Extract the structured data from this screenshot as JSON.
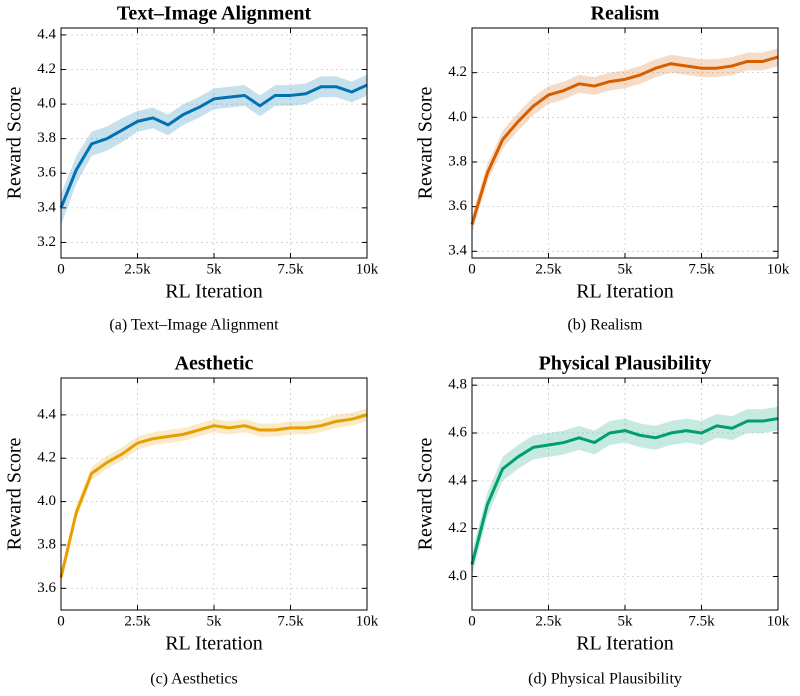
{
  "chart_data": [
    {
      "type": "line",
      "title": "Text–Image Alignment",
      "xlabel": "RL Iteration",
      "ylabel": "Reward Score",
      "caption": "(a) Text–Image Alignment",
      "x": [
        0,
        500,
        1000,
        1500,
        2000,
        2500,
        3000,
        3500,
        4000,
        4500,
        5000,
        5500,
        6000,
        6500,
        7000,
        7500,
        8000,
        8500,
        9000,
        9500,
        10000
      ],
      "series": [
        {
          "color": "#0072b2",
          "values": [
            3.4,
            3.62,
            3.77,
            3.8,
            3.85,
            3.9,
            3.92,
            3.88,
            3.94,
            3.98,
            4.03,
            4.04,
            4.05,
            3.99,
            4.05,
            4.05,
            4.06,
            4.1,
            4.1,
            4.07,
            4.11
          ],
          "lower": [
            3.3,
            3.54,
            3.7,
            3.73,
            3.78,
            3.84,
            3.86,
            3.82,
            3.88,
            3.92,
            3.97,
            3.98,
            3.99,
            3.93,
            3.99,
            3.99,
            4.0,
            4.04,
            4.04,
            4.01,
            4.05
          ],
          "upper": [
            3.48,
            3.7,
            3.84,
            3.87,
            3.92,
            3.96,
            3.98,
            3.94,
            4.0,
            4.04,
            4.09,
            4.1,
            4.11,
            4.05,
            4.11,
            4.11,
            4.12,
            4.16,
            4.16,
            4.13,
            4.17
          ]
        }
      ],
      "xlim": [
        0,
        10000
      ],
      "xticks": [
        0,
        {
          "value": 2500,
          "label": "2.5k"
        },
        {
          "value": 5000,
          "label": "5k"
        },
        {
          "value": 7500,
          "label": "7.5k"
        },
        {
          "value": 10000,
          "label": "10k"
        }
      ],
      "ylim": [
        3.11,
        4.44
      ],
      "yticks": [
        3.2,
        3.4,
        3.6,
        3.8,
        {
          "value": 4,
          "label": "4.0"
        },
        4.2,
        4.4
      ],
      "grid": true
    },
    {
      "type": "line",
      "title": "Realism",
      "xlabel": "RL Iteration",
      "ylabel": "Reward Score",
      "caption": "(b) Realism",
      "x": [
        0,
        500,
        1000,
        1500,
        2000,
        2500,
        3000,
        3500,
        4000,
        4500,
        5000,
        5500,
        6000,
        6500,
        7000,
        7500,
        8000,
        8500,
        9000,
        9500,
        10000
      ],
      "series": [
        {
          "color": "#d55e00",
          "values": [
            3.52,
            3.75,
            3.9,
            3.98,
            4.05,
            4.1,
            4.12,
            4.15,
            4.14,
            4.16,
            4.17,
            4.19,
            4.22,
            4.24,
            4.23,
            4.22,
            4.22,
            4.23,
            4.25,
            4.25,
            4.27
          ],
          "lower": [
            3.48,
            3.71,
            3.86,
            3.94,
            4.01,
            4.06,
            4.08,
            4.11,
            4.1,
            4.12,
            4.13,
            4.15,
            4.18,
            4.2,
            4.19,
            4.18,
            4.18,
            4.19,
            4.21,
            4.21,
            4.23
          ],
          "upper": [
            3.56,
            3.79,
            3.94,
            4.02,
            4.09,
            4.14,
            4.16,
            4.19,
            4.18,
            4.2,
            4.21,
            4.23,
            4.26,
            4.28,
            4.27,
            4.26,
            4.26,
            4.27,
            4.29,
            4.29,
            4.31
          ]
        }
      ],
      "xlim": [
        0,
        10000
      ],
      "xticks": [
        0,
        {
          "value": 2500,
          "label": "2.5k"
        },
        {
          "value": 5000,
          "label": "5k"
        },
        {
          "value": 7500,
          "label": "7.5k"
        },
        {
          "value": 10000,
          "label": "10k"
        }
      ],
      "ylim": [
        3.37,
        4.4
      ],
      "yticks": [
        3.4,
        3.6,
        3.8,
        {
          "value": 4,
          "label": "4.0"
        },
        4.2
      ],
      "grid": true
    },
    {
      "type": "line",
      "title": "Aesthetic",
      "xlabel": "RL Iteration",
      "ylabel": "Reward Score",
      "caption": "(c) Aesthetics",
      "x": [
        0,
        500,
        1000,
        1500,
        2000,
        2500,
        3000,
        3500,
        4000,
        4500,
        5000,
        5500,
        6000,
        6500,
        7000,
        7500,
        8000,
        8500,
        9000,
        9500,
        10000
      ],
      "series": [
        {
          "color": "#e69f00",
          "values": [
            3.65,
            3.95,
            4.13,
            4.18,
            4.22,
            4.27,
            4.29,
            4.3,
            4.31,
            4.33,
            4.35,
            4.34,
            4.35,
            4.33,
            4.33,
            4.34,
            4.34,
            4.35,
            4.37,
            4.38,
            4.4
          ],
          "lower": [
            3.62,
            3.92,
            4.1,
            4.15,
            4.19,
            4.24,
            4.26,
            4.27,
            4.28,
            4.3,
            4.32,
            4.31,
            4.32,
            4.3,
            4.3,
            4.31,
            4.31,
            4.32,
            4.34,
            4.35,
            4.37
          ],
          "upper": [
            3.68,
            3.98,
            4.16,
            4.21,
            4.25,
            4.3,
            4.32,
            4.33,
            4.34,
            4.36,
            4.38,
            4.37,
            4.38,
            4.36,
            4.36,
            4.37,
            4.37,
            4.38,
            4.4,
            4.41,
            4.43
          ]
        }
      ],
      "xlim": [
        0,
        10000
      ],
      "xticks": [
        0,
        {
          "value": 2500,
          "label": "2.5k"
        },
        {
          "value": 5000,
          "label": "5k"
        },
        {
          "value": 7500,
          "label": "7.5k"
        },
        {
          "value": 10000,
          "label": "10k"
        }
      ],
      "ylim": [
        3.5,
        4.57
      ],
      "yticks": [
        3.6,
        3.8,
        {
          "value": 4,
          "label": "4.0"
        },
        4.2,
        4.4
      ],
      "grid": true
    },
    {
      "type": "line",
      "title": "Physical Plausibility",
      "xlabel": "RL Iteration",
      "ylabel": "Reward Score",
      "caption": "(d) Physical Plausibility",
      "x": [
        0,
        500,
        1000,
        1500,
        2000,
        2500,
        3000,
        3500,
        4000,
        4500,
        5000,
        5500,
        6000,
        6500,
        7000,
        7500,
        8000,
        8500,
        9000,
        9500,
        10000
      ],
      "series": [
        {
          "color": "#009e73",
          "values": [
            4.05,
            4.3,
            4.45,
            4.5,
            4.54,
            4.55,
            4.56,
            4.58,
            4.56,
            4.6,
            4.61,
            4.59,
            4.58,
            4.6,
            4.61,
            4.6,
            4.63,
            4.62,
            4.65,
            4.65,
            4.66
          ],
          "lower": [
            4.0,
            4.25,
            4.4,
            4.45,
            4.49,
            4.5,
            4.51,
            4.53,
            4.51,
            4.55,
            4.56,
            4.54,
            4.53,
            4.55,
            4.56,
            4.55,
            4.58,
            4.57,
            4.6,
            4.6,
            4.61
          ],
          "upper": [
            4.1,
            4.35,
            4.5,
            4.55,
            4.59,
            4.6,
            4.61,
            4.63,
            4.61,
            4.65,
            4.66,
            4.64,
            4.63,
            4.65,
            4.66,
            4.65,
            4.68,
            4.67,
            4.7,
            4.7,
            4.71
          ]
        }
      ],
      "xlim": [
        0,
        10000
      ],
      "xticks": [
        0,
        {
          "value": 2500,
          "label": "2.5k"
        },
        {
          "value": 5000,
          "label": "5k"
        },
        {
          "value": 7500,
          "label": "7.5k"
        },
        {
          "value": 10000,
          "label": "10k"
        }
      ],
      "ylim": [
        3.86,
        4.83
      ],
      "yticks": [
        {
          "value": 4,
          "label": "4.0"
        },
        4.2,
        4.4,
        4.6,
        4.8
      ],
      "grid": true
    }
  ]
}
